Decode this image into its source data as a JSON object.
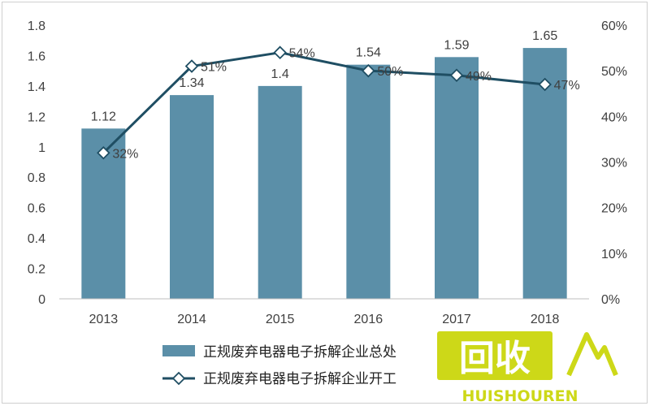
{
  "chart_data": {
    "type": "bar",
    "categories": [
      "2013",
      "2014",
      "2015",
      "2016",
      "2017",
      "2018"
    ],
    "series": [
      {
        "name": "正规废弃电器电子拆解企业总处",
        "type": "bar",
        "axis": "left",
        "values": [
          1.12,
          1.34,
          1.4,
          1.54,
          1.59,
          1.65
        ],
        "labels": [
          "1.12",
          "1.34",
          "1.4",
          "1.54",
          "1.59",
          "1.65"
        ],
        "color": "#5b8fa8"
      },
      {
        "name": "正规废弃电器电子拆解企业开工",
        "type": "line",
        "axis": "right",
        "values": [
          32,
          51,
          54,
          50,
          49,
          47
        ],
        "labels": [
          "32%",
          "51%",
          "54%",
          "50%",
          "49%",
          "47%"
        ],
        "color": "#1f4e63"
      }
    ],
    "ylim": [
      0,
      1.8
    ],
    "y_ticks": [
      "0",
      "0.2",
      "0.4",
      "0.6",
      "0.8",
      "1",
      "1.2",
      "1.4",
      "1.6",
      "1.8"
    ],
    "y2lim": [
      0,
      60
    ],
    "y2_ticks": [
      "0%",
      "10%",
      "20%",
      "30%",
      "40%",
      "50%",
      "60%"
    ],
    "grid": false,
    "legend_position": "bottom"
  },
  "watermark": {
    "text": "回收",
    "subtext": "HUISHOUREN",
    "color": "#c8d400"
  }
}
